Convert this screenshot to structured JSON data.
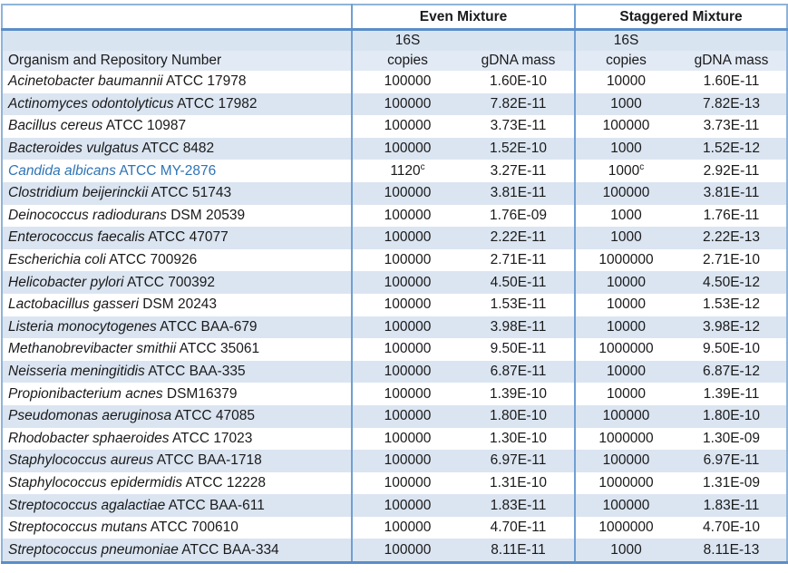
{
  "table": {
    "headers": {
      "organism": "Organism and Repository Number",
      "group_even": "Even Mixture",
      "group_staggered": "Staggered Mixture",
      "sub_16s": "16S",
      "sub_copies": "copies",
      "sub_gdna": "gDNA mass"
    },
    "highlight_text_color": "#2e74b5",
    "stripe_color": "#dbe5f1",
    "border_color": "#5a8ec9",
    "footnote_marker": "c",
    "rows": [
      {
        "species": "Acinetobacter baumannii",
        "repo": "ATCC 17978",
        "even_copies": "100000",
        "even_sup": "",
        "even_gdna": "1.60E-10",
        "stag_copies": "10000",
        "stag_sup": "",
        "stag_gdna": "1.60E-11",
        "highlight": false
      },
      {
        "species": "Actinomyces odontolyticus",
        "repo": "ATCC 17982",
        "even_copies": "100000",
        "even_sup": "",
        "even_gdna": "7.82E-11",
        "stag_copies": "1000",
        "stag_sup": "",
        "stag_gdna": "7.82E-13",
        "highlight": false
      },
      {
        "species": "Bacillus cereus",
        "repo": "ATCC 10987",
        "even_copies": "100000",
        "even_sup": "",
        "even_gdna": "3.73E-11",
        "stag_copies": "100000",
        "stag_sup": "",
        "stag_gdna": "3.73E-11",
        "highlight": false
      },
      {
        "species": "Bacteroides vulgatus",
        "repo": "ATCC 8482",
        "even_copies": "100000",
        "even_sup": "",
        "even_gdna": "1.52E-10",
        "stag_copies": "1000",
        "stag_sup": "",
        "stag_gdna": "1.52E-12",
        "highlight": false
      },
      {
        "species": "Candida albicans",
        "repo": "ATCC MY-2876",
        "even_copies": "1120",
        "even_sup": "c",
        "even_gdna": "3.27E-11",
        "stag_copies": "1000",
        "stag_sup": "c",
        "stag_gdna": "2.92E-11",
        "highlight": true
      },
      {
        "species": "Clostridium beijerinckii",
        "repo": "ATCC 51743",
        "even_copies": "100000",
        "even_sup": "",
        "even_gdna": "3.81E-11",
        "stag_copies": "100000",
        "stag_sup": "",
        "stag_gdna": "3.81E-11",
        "highlight": false
      },
      {
        "species": "Deinococcus radiodurans",
        "repo": "DSM 20539",
        "even_copies": "100000",
        "even_sup": "",
        "even_gdna": "1.76E-09",
        "stag_copies": "1000",
        "stag_sup": "",
        "stag_gdna": "1.76E-11",
        "highlight": false
      },
      {
        "species": "Enterococcus faecalis",
        "repo": "ATCC 47077",
        "even_copies": "100000",
        "even_sup": "",
        "even_gdna": "2.22E-11",
        "stag_copies": "1000",
        "stag_sup": "",
        "stag_gdna": "2.22E-13",
        "highlight": false
      },
      {
        "species": "Escherichia coli",
        "repo": "ATCC 700926",
        "even_copies": "100000",
        "even_sup": "",
        "even_gdna": "2.71E-11",
        "stag_copies": "1000000",
        "stag_sup": "",
        "stag_gdna": "2.71E-10",
        "highlight": false
      },
      {
        "species": "Helicobacter pylori",
        "repo": "ATCC 700392",
        "even_copies": "100000",
        "even_sup": "",
        "even_gdna": "4.50E-11",
        "stag_copies": "10000",
        "stag_sup": "",
        "stag_gdna": "4.50E-12",
        "highlight": false
      },
      {
        "species": "Lactobacillus gasseri",
        "repo": "DSM 20243",
        "even_copies": "100000",
        "even_sup": "",
        "even_gdna": "1.53E-11",
        "stag_copies": "10000",
        "stag_sup": "",
        "stag_gdna": "1.53E-12",
        "highlight": false
      },
      {
        "species": "Listeria monocytogenes",
        "repo": "ATCC BAA-679",
        "even_copies": "100000",
        "even_sup": "",
        "even_gdna": "3.98E-11",
        "stag_copies": "10000",
        "stag_sup": "",
        "stag_gdna": "3.98E-12",
        "highlight": false
      },
      {
        "species": "Methanobrevibacter smithii",
        "repo": "ATCC 35061",
        "even_copies": "100000",
        "even_sup": "",
        "even_gdna": "9.50E-11",
        "stag_copies": "1000000",
        "stag_sup": "",
        "stag_gdna": "9.50E-10",
        "highlight": false
      },
      {
        "species": "Neisseria meningitidis",
        "repo": "ATCC BAA-335",
        "even_copies": "100000",
        "even_sup": "",
        "even_gdna": "6.87E-11",
        "stag_copies": "10000",
        "stag_sup": "",
        "stag_gdna": "6.87E-12",
        "highlight": false
      },
      {
        "species": "Propionibacterium acnes",
        "repo": "DSM16379",
        "even_copies": "100000",
        "even_sup": "",
        "even_gdna": "1.39E-10",
        "stag_copies": "10000",
        "stag_sup": "",
        "stag_gdna": "1.39E-11",
        "highlight": false
      },
      {
        "species": "Pseudomonas aeruginosa",
        "repo": "ATCC 47085",
        "even_copies": "100000",
        "even_sup": "",
        "even_gdna": "1.80E-10",
        "stag_copies": "100000",
        "stag_sup": "",
        "stag_gdna": "1.80E-10",
        "highlight": false
      },
      {
        "species": "Rhodobacter sphaeroides",
        "repo": "ATCC 17023",
        "even_copies": "100000",
        "even_sup": "",
        "even_gdna": "1.30E-10",
        "stag_copies": "1000000",
        "stag_sup": "",
        "stag_gdna": "1.30E-09",
        "highlight": false
      },
      {
        "species": "Staphylococcus aureus",
        "repo": "ATCC BAA-1718",
        "even_copies": "100000",
        "even_sup": "",
        "even_gdna": "6.97E-11",
        "stag_copies": "100000",
        "stag_sup": "",
        "stag_gdna": "6.97E-11",
        "highlight": false
      },
      {
        "species": "Staphylococcus epidermidis",
        "repo": "ATCC 12228",
        "even_copies": "100000",
        "even_sup": "",
        "even_gdna": "1.31E-10",
        "stag_copies": "1000000",
        "stag_sup": "",
        "stag_gdna": "1.31E-09",
        "highlight": false
      },
      {
        "species": "Streptococcus agalactiae",
        "repo": "ATCC BAA-611",
        "even_copies": "100000",
        "even_sup": "",
        "even_gdna": "1.83E-11",
        "stag_copies": "100000",
        "stag_sup": "",
        "stag_gdna": "1.83E-11",
        "highlight": false
      },
      {
        "species": "Streptococcus mutans",
        "repo": "ATCC 700610",
        "even_copies": "100000",
        "even_sup": "",
        "even_gdna": "4.70E-11",
        "stag_copies": "1000000",
        "stag_sup": "",
        "stag_gdna": "4.70E-10",
        "highlight": false
      },
      {
        "species": "Streptococcus pneumoniae",
        "repo": "ATCC BAA-334",
        "even_copies": "100000",
        "even_sup": "",
        "even_gdna": "8.11E-11",
        "stag_copies": "1000",
        "stag_sup": "",
        "stag_gdna": "8.11E-13",
        "highlight": false
      }
    ]
  }
}
